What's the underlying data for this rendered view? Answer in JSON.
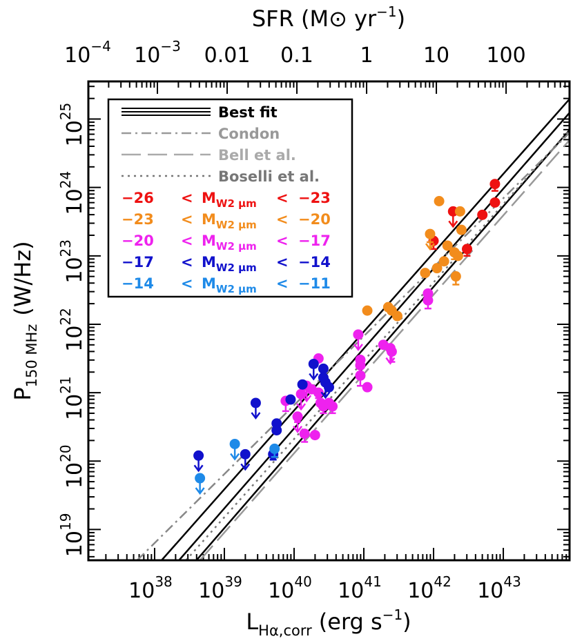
{
  "chart_data": {
    "type": "scatter",
    "title": "",
    "xlabel": {
      "main": "L",
      "sub": "Hα,corr",
      "unit": "(erg s",
      "unit_sup": "−1",
      "unit_end": ")"
    },
    "ylabel": {
      "main": "P",
      "sub": "150 MHz",
      "unit": "(W/Hz)"
    },
    "top_label": {
      "main": "SFR (M",
      "sun": "⊙",
      "rest": " yr",
      "sup": "−1",
      "end": ")"
    },
    "x_log_range": [
      37.05,
      43.95
    ],
    "y_log_range": [
      18.55,
      25.55
    ],
    "x_ticks": [
      {
        "base": "10",
        "exp": "38",
        "v": 38
      },
      {
        "base": "10",
        "exp": "39",
        "v": 39
      },
      {
        "base": "10",
        "exp": "40",
        "v": 40
      },
      {
        "base": "10",
        "exp": "41",
        "v": 41
      },
      {
        "base": "10",
        "exp": "42",
        "v": 42
      },
      {
        "base": "10",
        "exp": "43",
        "v": 43
      }
    ],
    "y_ticks": [
      {
        "base": "10",
        "exp": "19",
        "v": 19
      },
      {
        "base": "10",
        "exp": "20",
        "v": 20
      },
      {
        "base": "10",
        "exp": "21",
        "v": 21
      },
      {
        "base": "10",
        "exp": "22",
        "v": 22
      },
      {
        "base": "10",
        "exp": "23",
        "v": 23
      },
      {
        "base": "10",
        "exp": "24",
        "v": 24
      },
      {
        "base": "10",
        "exp": "25",
        "v": 25
      }
    ],
    "top_ticks": [
      {
        "base": "10",
        "exp": "−4",
        "text": "",
        "v": 37.04
      },
      {
        "base": "10",
        "exp": "−3",
        "text": "",
        "v": 38.04
      },
      {
        "base": "",
        "exp": "",
        "text": "0.01",
        "v": 39.04
      },
      {
        "base": "",
        "exp": "",
        "text": "0.1",
        "v": 40.04
      },
      {
        "base": "",
        "exp": "",
        "text": "1",
        "v": 41.04
      },
      {
        "base": "",
        "exp": "",
        "text": "10",
        "v": 42.04
      },
      {
        "base": "",
        "exp": "",
        "text": "100",
        "v": 43.04
      }
    ],
    "lines": [
      {
        "name": "Best fit",
        "style": "solid",
        "color": "#000000",
        "points": [
          [
            38.1,
            18.55
          ],
          [
            44.0,
            25.35
          ]
        ]
      },
      {
        "name": "Best fit",
        "style": "solid",
        "color": "#000000",
        "points": [
          [
            38.35,
            18.55
          ],
          [
            44.0,
            25.15
          ]
        ]
      },
      {
        "name": "Best fit",
        "style": "solid",
        "color": "#000000",
        "points": [
          [
            38.6,
            18.55
          ],
          [
            44.0,
            24.9
          ]
        ]
      },
      {
        "name": "Condon",
        "style": "dashdot",
        "color": "#888888",
        "points": [
          [
            37.75,
            18.55
          ],
          [
            44.0,
            24.85
          ]
        ]
      },
      {
        "name": "Bell et al.",
        "style": "longdash",
        "color": "#999999",
        "points": [
          [
            38.65,
            18.55
          ],
          [
            44.0,
            24.75
          ]
        ]
      },
      {
        "name": "Boselli et al.",
        "style": "dotted",
        "color": "#777777",
        "points": [
          [
            38.45,
            18.55
          ],
          [
            44.0,
            24.9
          ]
        ]
      }
    ],
    "legend": {
      "position": "top-left",
      "entries": [
        {
          "label": "Best fit",
          "color": "#000000",
          "style": "triple"
        },
        {
          "label": "Condon",
          "color": "#999999",
          "style": "dashdot"
        },
        {
          "label": "Bell et al.",
          "color": "#aaaaaa",
          "style": "longdash"
        },
        {
          "label": "Boselli et al.",
          "color": "#777777",
          "style": "dotted"
        }
      ],
      "ranges": [
        {
          "lo": "−26",
          "lt": "<",
          "m": "M",
          "sub": "W2 μm",
          "lt2": "<",
          "hi": "−23",
          "color": "#ee1111"
        },
        {
          "lo": "−23",
          "lt": "<",
          "m": "M",
          "sub": "W2 μm",
          "lt2": "<",
          "hi": "−20",
          "color": "#f28c1c"
        },
        {
          "lo": "−20",
          "lt": "<",
          "m": "M",
          "sub": "W2 μm",
          "lt2": "<",
          "hi": "−17",
          "color": "#ee22ee"
        },
        {
          "lo": "−17",
          "lt": "<",
          "m": "M",
          "sub": "W2 μm",
          "lt2": "<",
          "hi": "−14",
          "color": "#1111cc"
        },
        {
          "lo": "−14",
          "lt": "<",
          "m": "M",
          "sub": "W2 μm",
          "lt2": "<",
          "hi": "−11",
          "color": "#1e8ae8"
        }
      ]
    },
    "series": [
      {
        "color": "#ee1111",
        "points": [
          {
            "x": 42.88,
            "y": 24.05,
            "eb": 0.1
          },
          {
            "x": 42.88,
            "y": 23.78,
            "eb": 0
          },
          {
            "x": 42.7,
            "y": 23.6,
            "eb": 0
          },
          {
            "x": 42.28,
            "y": 23.65,
            "eb": 0,
            "ul": true
          },
          {
            "x": 42.0,
            "y": 23.22,
            "eb": 0.12
          },
          {
            "x": 42.48,
            "y": 23.1,
            "eb": 0.1
          }
        ]
      },
      {
        "color": "#f28c1c",
        "points": [
          {
            "x": 42.08,
            "y": 23.8,
            "eb": 0
          },
          {
            "x": 42.38,
            "y": 23.65,
            "eb": 0
          },
          {
            "x": 41.95,
            "y": 23.32,
            "eb": 0.12,
            "ul": true
          },
          {
            "x": 42.4,
            "y": 23.38,
            "eb": 0
          },
          {
            "x": 42.2,
            "y": 23.15,
            "eb": 0
          },
          {
            "x": 42.3,
            "y": 23.05,
            "eb": 0.1
          },
          {
            "x": 42.35,
            "y": 23.0,
            "eb": 0
          },
          {
            "x": 42.15,
            "y": 22.92,
            "eb": 0
          },
          {
            "x": 42.05,
            "y": 22.82,
            "eb": 0
          },
          {
            "x": 41.88,
            "y": 22.75,
            "eb": 0
          },
          {
            "x": 42.32,
            "y": 22.7,
            "eb": 0.12
          },
          {
            "x": 41.05,
            "y": 22.2,
            "eb": 0
          },
          {
            "x": 41.35,
            "y": 22.25,
            "eb": 0
          },
          {
            "x": 41.4,
            "y": 22.2,
            "eb": 0
          },
          {
            "x": 41.48,
            "y": 22.12,
            "eb": 0
          }
        ]
      },
      {
        "color": "#ee22ee",
        "points": [
          {
            "x": 41.92,
            "y": 22.45,
            "eb": 0
          },
          {
            "x": 41.92,
            "y": 22.35,
            "eb": 0.12
          },
          {
            "x": 40.92,
            "y": 21.85,
            "eb": 0,
            "ul": true
          },
          {
            "x": 40.35,
            "y": 21.5,
            "eb": 0
          },
          {
            "x": 41.28,
            "y": 21.7,
            "eb": 0
          },
          {
            "x": 41.38,
            "y": 21.65,
            "eb": 0,
            "ul": true
          },
          {
            "x": 41.4,
            "y": 21.6,
            "eb": 0.15
          },
          {
            "x": 40.95,
            "y": 21.48,
            "eb": 0
          },
          {
            "x": 40.95,
            "y": 21.4,
            "eb": 0.1
          },
          {
            "x": 40.95,
            "y": 21.25,
            "eb": 0.15
          },
          {
            "x": 41.05,
            "y": 21.08,
            "eb": 0
          },
          {
            "x": 40.18,
            "y": 21.1,
            "eb": 0,
            "ul": true
          },
          {
            "x": 40.25,
            "y": 21.05,
            "eb": 0
          },
          {
            "x": 40.35,
            "y": 21.0,
            "eb": 0.08
          },
          {
            "x": 39.88,
            "y": 20.88,
            "eb": 0.15
          },
          {
            "x": 40.1,
            "y": 20.98,
            "eb": 0,
            "ul": true
          },
          {
            "x": 40.05,
            "y": 20.65,
            "eb": 0.08,
            "ul": true
          },
          {
            "x": 40.38,
            "y": 20.85,
            "eb": 0
          },
          {
            "x": 40.42,
            "y": 20.8,
            "eb": 0.1
          },
          {
            "x": 40.5,
            "y": 20.85,
            "eb": 0
          },
          {
            "x": 40.55,
            "y": 20.8,
            "eb": 0.1
          },
          {
            "x": 40.15,
            "y": 20.4,
            "eb": 0.12
          },
          {
            "x": 40.3,
            "y": 20.38,
            "eb": 0
          }
        ]
      },
      {
        "color": "#1111cc",
        "points": [
          {
            "x": 40.28,
            "y": 21.42,
            "eb": 0,
            "ul": true
          },
          {
            "x": 40.42,
            "y": 21.35,
            "eb": 0
          },
          {
            "x": 40.42,
            "y": 21.22,
            "eb": 0
          },
          {
            "x": 40.45,
            "y": 21.15,
            "eb": 0,
            "ul": true
          },
          {
            "x": 40.12,
            "y": 21.12,
            "eb": 0
          },
          {
            "x": 40.5,
            "y": 21.08,
            "eb": 0
          },
          {
            "x": 39.95,
            "y": 20.9,
            "eb": 0
          },
          {
            "x": 39.45,
            "y": 20.85,
            "eb": 0,
            "ul": true
          },
          {
            "x": 39.75,
            "y": 20.55,
            "eb": 0.08
          },
          {
            "x": 39.75,
            "y": 20.45,
            "eb": 0
          },
          {
            "x": 39.3,
            "y": 20.1,
            "eb": 0,
            "ul": true
          },
          {
            "x": 39.7,
            "y": 20.1,
            "eb": 0.08
          },
          {
            "x": 38.63,
            "y": 20.08,
            "eb": 0,
            "ul": true
          }
        ]
      },
      {
        "color": "#1e8ae8",
        "points": [
          {
            "x": 39.15,
            "y": 20.25,
            "eb": 0,
            "ul": true
          },
          {
            "x": 39.72,
            "y": 20.18,
            "eb": 0.12
          },
          {
            "x": 38.65,
            "y": 19.75,
            "eb": 0,
            "ul": true
          }
        ]
      }
    ]
  }
}
